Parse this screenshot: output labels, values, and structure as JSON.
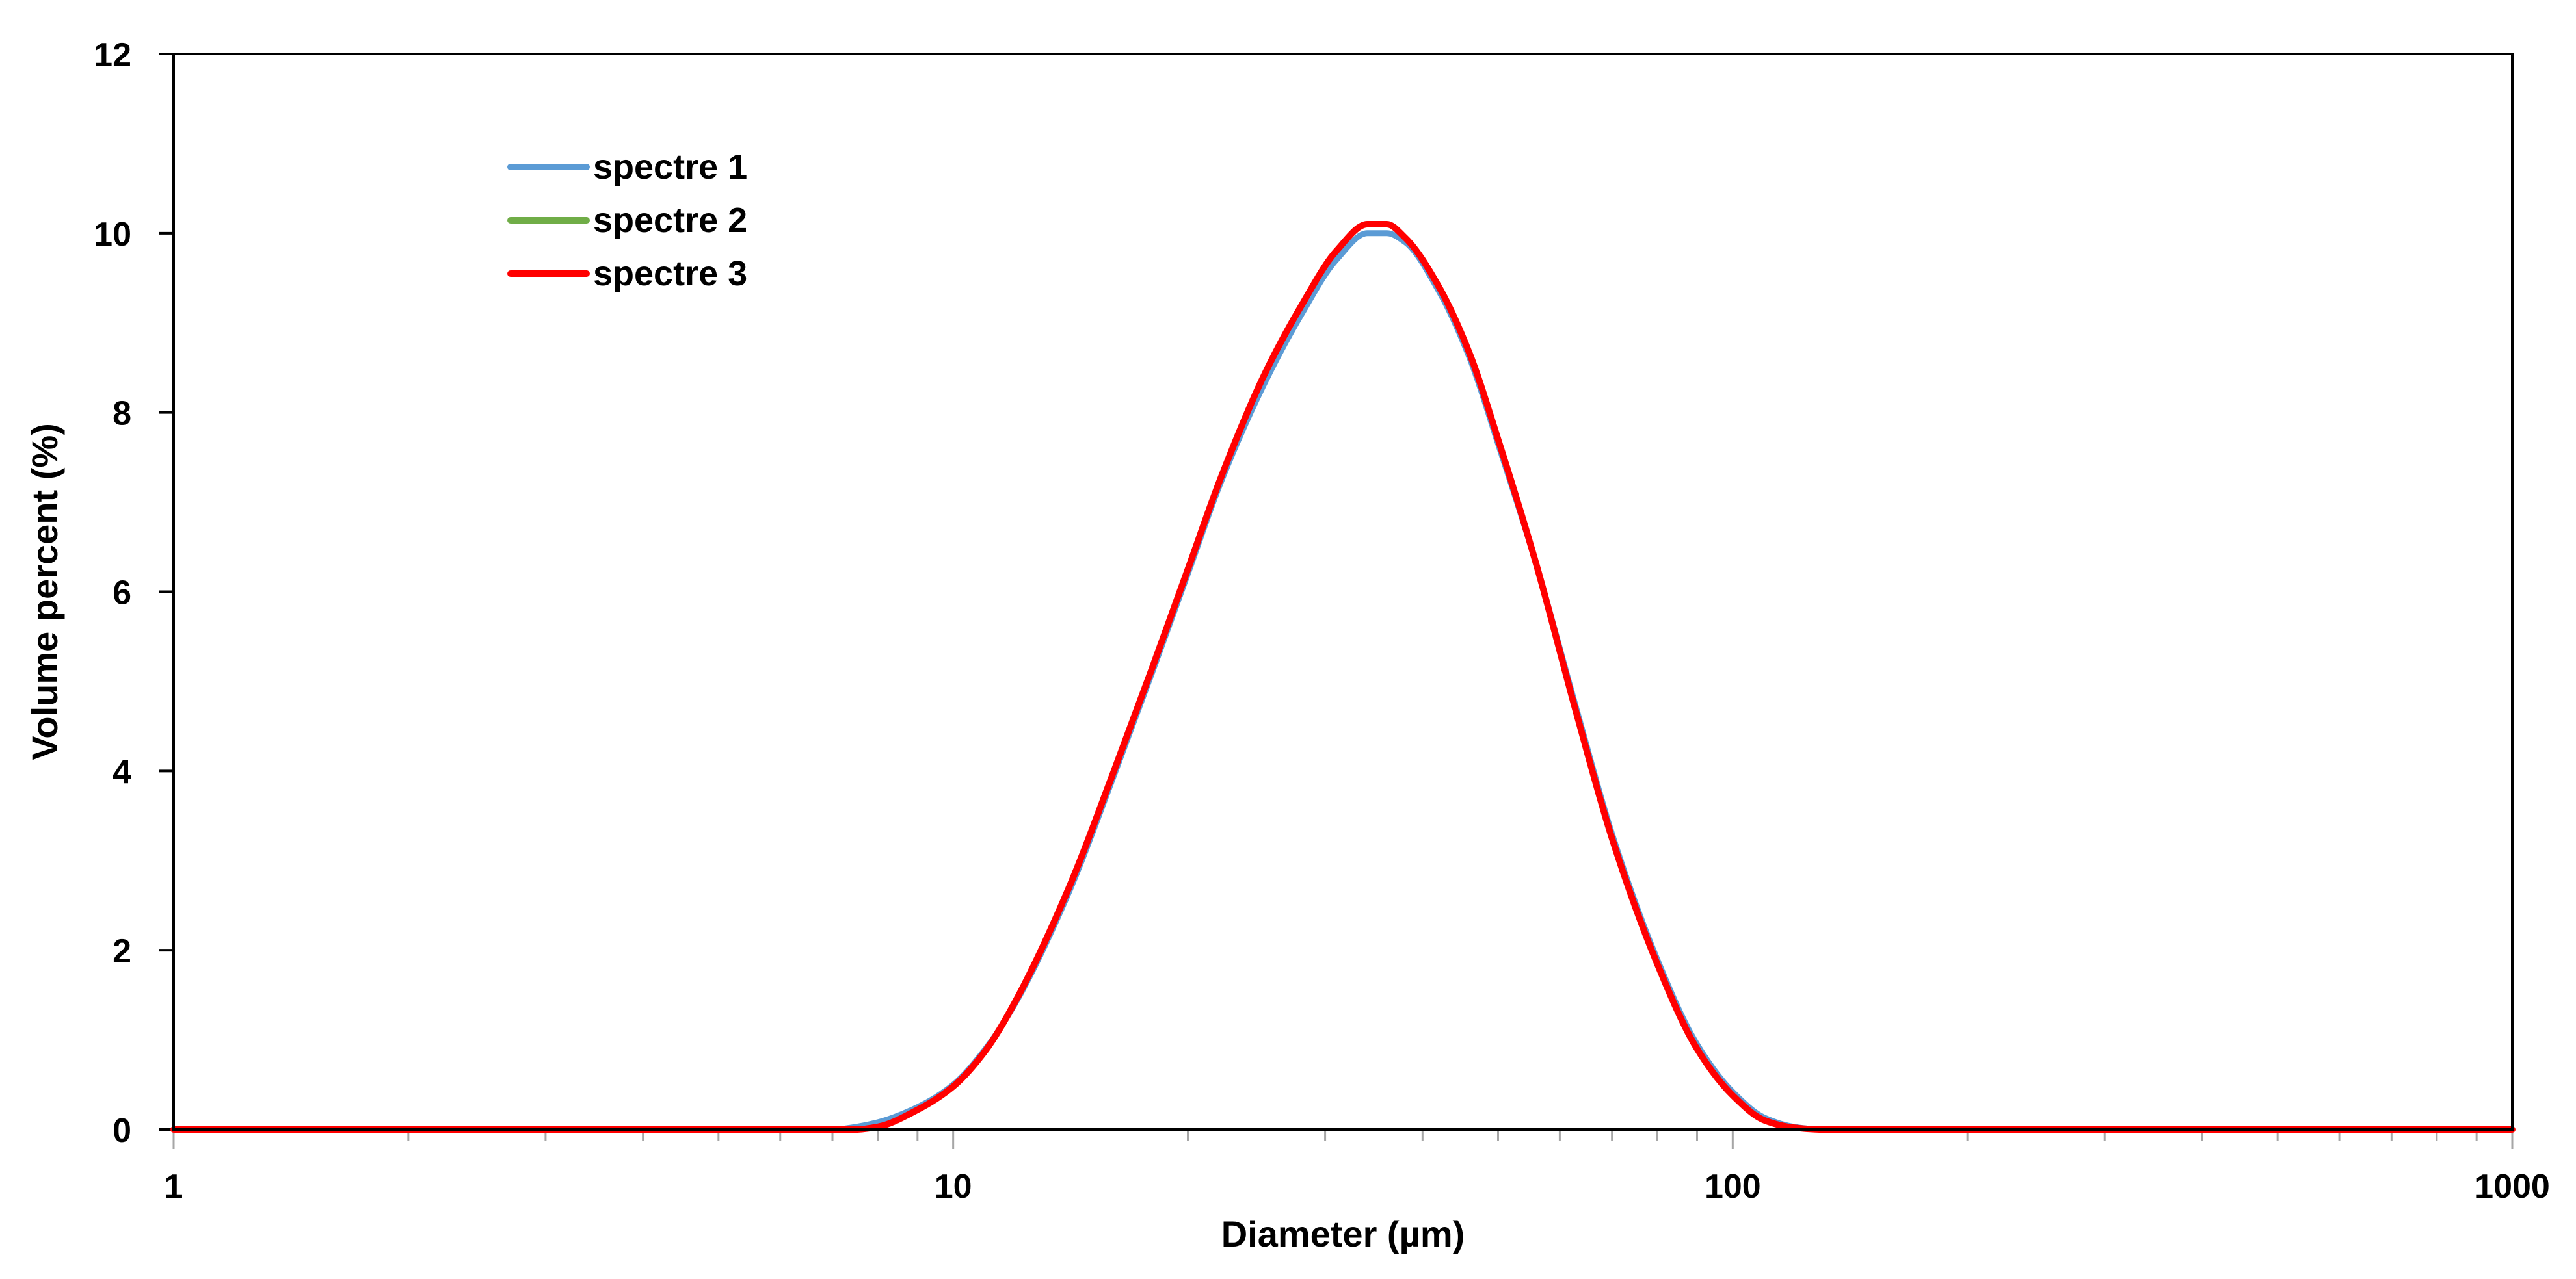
{
  "chart_data": {
    "type": "line",
    "title": "",
    "xlabel": "Diameter (µm)",
    "ylabel": "Volume percent (%)",
    "x_scale": "log",
    "xlim": [
      1,
      1000
    ],
    "ylim": [
      0,
      12
    ],
    "x_ticks": [
      "1",
      "10",
      "100",
      "1000"
    ],
    "y_ticks": [
      "0",
      "2",
      "4",
      "6",
      "8",
      "10",
      "12"
    ],
    "grid": false,
    "legend_position": "top-left",
    "x": [
      1,
      2,
      4,
      6,
      7,
      7.5,
      8,
      9,
      10,
      11,
      12,
      14,
      16,
      18,
      20,
      22,
      25,
      28,
      31,
      34,
      36,
      38,
      42,
      46,
      50,
      56,
      63,
      70,
      80,
      90,
      100,
      110,
      120,
      130,
      150,
      200,
      500,
      1000
    ],
    "series": [
      {
        "name": "spectre 1",
        "color": "#5b9bd5",
        "values": [
          0,
          0,
          0,
          0,
          0.0,
          0.03,
          0.08,
          0.25,
          0.5,
          0.9,
          1.4,
          2.6,
          3.9,
          5.1,
          6.2,
          7.2,
          8.3,
          9.1,
          9.7,
          10.0,
          10.0,
          9.9,
          9.35,
          8.6,
          7.65,
          6.3,
          4.7,
          3.3,
          1.9,
          0.95,
          0.42,
          0.13,
          0.03,
          0.0,
          0,
          0,
          0,
          0
        ]
      },
      {
        "name": "spectre 2",
        "color": "#70ad47",
        "values": [
          0,
          0,
          0,
          0,
          0.0,
          0.0,
          0.03,
          0.22,
          0.48,
          0.88,
          1.42,
          2.65,
          3.95,
          5.15,
          6.25,
          7.25,
          8.4,
          9.2,
          9.8,
          10.1,
          10.1,
          9.95,
          9.4,
          8.65,
          7.7,
          6.3,
          4.65,
          3.25,
          1.85,
          0.9,
          0.38,
          0.1,
          0.02,
          0.0,
          0,
          0,
          0,
          0
        ]
      },
      {
        "name": "spectre 3",
        "color": "#ff0000",
        "values": [
          0,
          0,
          0,
          0,
          0.0,
          0.0,
          0.03,
          0.22,
          0.48,
          0.88,
          1.42,
          2.65,
          3.95,
          5.15,
          6.25,
          7.25,
          8.4,
          9.2,
          9.8,
          10.1,
          10.1,
          9.95,
          9.4,
          8.65,
          7.7,
          6.3,
          4.65,
          3.25,
          1.85,
          0.9,
          0.38,
          0.1,
          0.02,
          0.0,
          0,
          0,
          0,
          0
        ]
      }
    ]
  }
}
